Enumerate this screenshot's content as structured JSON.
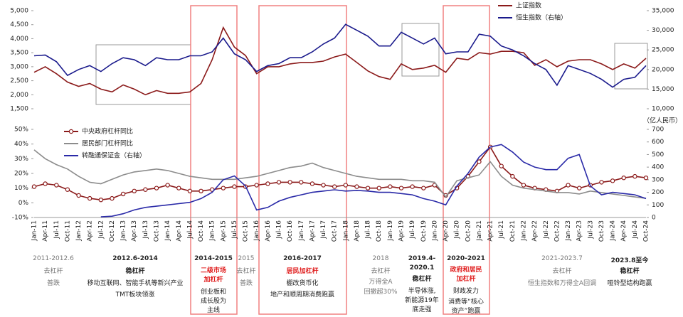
{
  "chart_data": [
    {
      "type": "line",
      "legend": "top-right",
      "categories": [
        "Jan-11",
        "Apr-11",
        "Jul-11",
        "Oct-11",
        "Jan-12",
        "Apr-12",
        "Jul-12",
        "Oct-12",
        "Jan-13",
        "Apr-13",
        "Jul-13",
        "Oct-13",
        "Jan-14",
        "Apr-14",
        "Jul-14",
        "Oct-14",
        "Jan-15",
        "Apr-15",
        "Jul-15",
        "Oct-15",
        "Jan-16",
        "Apr-16",
        "Jul-16",
        "Oct-16",
        "Jan-17",
        "Apr-17",
        "Jul-17",
        "Oct-17",
        "Jan-18",
        "Apr-18",
        "Jul-18",
        "Oct-18",
        "Jan-19",
        "Apr-19",
        "Jul-19",
        "Oct-19",
        "Jan-20",
        "Apr-20",
        "Jul-20",
        "Oct-20",
        "Jan-21",
        "Apr-21",
        "Jul-21",
        "Oct-21",
        "Jan-22",
        "Apr-22",
        "Jul-22",
        "Oct-22",
        "Jan-23",
        "Apr-23",
        "Jul-23",
        "Oct-23",
        "Jan-24",
        "Apr-24",
        "Jul-24",
        "Oct-24"
      ],
      "ylim": [
        1500,
        5000
      ],
      "yticks": [
        {
          "value": 1500,
          "label": "1,500"
        },
        {
          "value": 2000,
          "label": "2,000"
        },
        {
          "value": 2500,
          "label": "2,500"
        },
        {
          "value": 3000,
          "label": "3,000"
        },
        {
          "value": 3500,
          "label": "3,500"
        },
        {
          "value": 4000,
          "label": "4,000"
        },
        {
          "value": 4500,
          "label": "4,500"
        },
        {
          "value": 5000,
          "label": "5,000"
        }
      ],
      "y2lim": [
        10000,
        35000
      ],
      "y2ticks": [
        {
          "value": 10000,
          "label": "10,000"
        },
        {
          "value": 15000,
          "label": "15,000"
        },
        {
          "value": 20000,
          "label": "20,000"
        },
        {
          "value": 25000,
          "label": "25,000"
        },
        {
          "value": 30000,
          "label": "30,000"
        },
        {
          "value": 35000,
          "label": "35,000"
        }
      ],
      "series": [
        {
          "name": "上证指数",
          "color": "#8b1a1a",
          "values": [
            2800,
            3000,
            2750,
            2450,
            2300,
            2400,
            2200,
            2100,
            2350,
            2200,
            2000,
            2150,
            2050,
            2050,
            2100,
            2400,
            3250,
            4400,
            3700,
            3400,
            2750,
            3000,
            3000,
            3100,
            3150,
            3150,
            3200,
            3350,
            3450,
            3150,
            2850,
            2650,
            2550,
            3100,
            2900,
            2950,
            3050,
            2800,
            3300,
            3250,
            3500,
            3450,
            3550,
            3550,
            3500,
            3050,
            3250,
            3000,
            3200,
            3250,
            3250,
            3100,
            2900,
            3100,
            2950,
            3300
          ]
        },
        {
          "name": "恒生指数（右轴）",
          "color": "#1a1a8c",
          "axis": "y2",
          "values": [
            23500,
            23700,
            22000,
            18500,
            20000,
            21000,
            19500,
            21500,
            23000,
            22500,
            21000,
            23000,
            22500,
            22500,
            23500,
            23500,
            24500,
            28000,
            24000,
            22500,
            19500,
            21000,
            21500,
            23000,
            23000,
            24500,
            26500,
            28000,
            31500,
            30000,
            28500,
            26000,
            26000,
            29500,
            28000,
            26500,
            28000,
            24000,
            24500,
            24500,
            29000,
            28500,
            26000,
            25000,
            23500,
            21500,
            20000,
            16000,
            21000,
            20000,
            19000,
            17500,
            15500,
            17500,
            18000,
            21000
          ]
        }
      ]
    },
    {
      "type": "line",
      "legend": "top-left",
      "y2_unit": "（亿人民币）",
      "categories": [
        "Jan-11",
        "Apr-11",
        "Jul-11",
        "Oct-11",
        "Jan-12",
        "Apr-12",
        "Jul-12",
        "Oct-12",
        "Jan-13",
        "Apr-13",
        "Jul-13",
        "Oct-13",
        "Jan-14",
        "Apr-14",
        "Jul-14",
        "Oct-14",
        "Jan-15",
        "Apr-15",
        "Jul-15",
        "Oct-15",
        "Jan-16",
        "Apr-16",
        "Jul-16",
        "Oct-16",
        "Jan-17",
        "Apr-17",
        "Jul-17",
        "Oct-17",
        "Jan-18",
        "Apr-18",
        "Jul-18",
        "Oct-18",
        "Jan-19",
        "Apr-19",
        "Jul-19",
        "Oct-19",
        "Jan-20",
        "Apr-20",
        "Jul-20",
        "Oct-20",
        "Jan-21",
        "Apr-21",
        "Jul-21",
        "Oct-21",
        "Jan-22",
        "Apr-22",
        "Jul-22",
        "Oct-22",
        "Jan-23",
        "Apr-23",
        "Jul-23",
        "Oct-23",
        "Jan-24",
        "Apr-24",
        "Jul-24",
        "Oct-24"
      ],
      "ylim": [
        -10,
        50
      ],
      "yticks": [
        {
          "value": -10,
          "label": "-10%"
        },
        {
          "value": 0,
          "label": "0%"
        },
        {
          "value": 10,
          "label": "10%"
        },
        {
          "value": 20,
          "label": "20%"
        },
        {
          "value": 30,
          "label": "30%"
        },
        {
          "value": 40,
          "label": "40%"
        },
        {
          "value": 50,
          "label": "50%"
        }
      ],
      "y2lim": [
        0,
        700
      ],
      "y2ticks": [
        0,
        100,
        200,
        300,
        400,
        500,
        600,
        700
      ],
      "series": [
        {
          "name": "中央政府杠杆同比",
          "color": "#8b1a1a",
          "marker": "circle",
          "values": [
            11,
            13,
            12,
            9,
            5,
            3,
            2,
            3,
            6,
            8,
            9,
            10,
            12,
            10,
            8,
            8,
            9,
            10,
            11,
            11,
            12,
            13,
            14,
            14,
            14,
            13,
            12,
            11,
            12,
            11,
            10,
            10,
            11,
            10,
            11,
            10,
            12,
            5,
            10,
            18,
            28,
            38,
            25,
            18,
            12,
            10,
            9,
            8,
            12,
            10,
            12,
            14,
            15,
            17,
            18,
            17
          ]
        },
        {
          "name": "居民部门杠杆同比",
          "color": "#8c8c8c",
          "values": [
            36,
            30,
            26,
            23,
            18,
            14,
            13,
            16,
            19,
            21,
            22,
            23,
            22,
            20,
            18,
            17,
            16,
            16,
            16,
            17,
            18,
            20,
            22,
            24,
            25,
            27,
            24,
            22,
            20,
            18,
            17,
            16,
            16,
            16,
            15,
            15,
            14,
            4,
            15,
            17,
            19,
            28,
            18,
            12,
            10,
            9,
            8,
            7,
            7,
            6,
            8,
            7,
            6,
            5,
            4,
            3
          ]
        },
        {
          "name": "转融通保证金（右轴）",
          "color": "#2a2aa8",
          "axis": "y2",
          "values": [
            null,
            null,
            null,
            null,
            null,
            null,
            5,
            10,
            30,
            60,
            80,
            90,
            100,
            110,
            120,
            150,
            200,
            300,
            330,
            250,
            60,
            80,
            130,
            160,
            180,
            200,
            210,
            220,
            210,
            215,
            210,
            200,
            200,
            190,
            180,
            150,
            130,
            100,
            250,
            350,
            480,
            560,
            580,
            520,
            440,
            400,
            380,
            380,
            470,
            500,
            250,
            180,
            200,
            190,
            180,
            150
          ]
        }
      ]
    }
  ],
  "annotations": [
    [
      "2011-2012.6",
      "去杠杆",
      "普跌"
    ],
    [
      "2012.6-2014",
      "稳杠杆",
      "移动互联网、智能手机等新兴产业",
      "TMT板块领涨"
    ],
    [
      "2014-2015",
      "二级市场",
      "加杠杆",
      "创业板和",
      "成长股为",
      "主线"
    ],
    [
      "2015",
      "去杠杆",
      "普跌"
    ],
    [
      "2016-2017",
      "居民加杠杆",
      "棚改货币化",
      "地产和顺周期消费跑赢"
    ],
    [
      "2018",
      "去杠杆",
      "万得全A",
      "回撤超30%"
    ],
    [
      "2019.4-",
      "2020.1",
      "稳杠杆",
      "半导体涨,",
      "新能源19年",
      "底走强"
    ],
    [
      "2020-2021",
      "政府和居民",
      "加杠杆",
      "财政发力",
      "消费等“核心",
      "资产”跑赢"
    ],
    [
      "2021-2023.7",
      "去杠杆",
      "恒生指数和万得全A回调"
    ],
    [
      "2023.8至今",
      "稳杠杆",
      "哑铃型结构跑赢"
    ]
  ]
}
